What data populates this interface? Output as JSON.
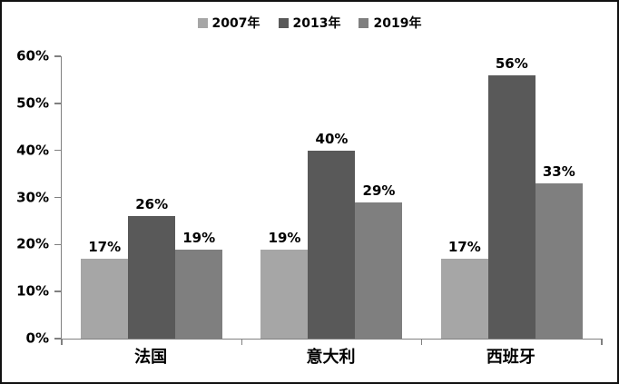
{
  "chart_data": {
    "type": "bar",
    "title": "",
    "categories": [
      "法国",
      "意大利",
      "西班牙"
    ],
    "series": [
      {
        "name": "2007年",
        "color": "#a6a6a6",
        "values": [
          17,
          19,
          17
        ],
        "labels": [
          "17%",
          "19%",
          "17%"
        ]
      },
      {
        "name": "2013年",
        "color": "#595959",
        "values": [
          26,
          40,
          56
        ],
        "labels": [
          "26%",
          "40%",
          "56%"
        ]
      },
      {
        "name": "2019年",
        "color": "#7f7f7f",
        "values": [
          19,
          29,
          33
        ],
        "labels": [
          "19%",
          "29%",
          "33%"
        ]
      }
    ],
    "value_suffix": "%",
    "ylim": [
      0,
      60
    ],
    "yticks": [
      0,
      10,
      20,
      30,
      40,
      50,
      60
    ],
    "ytick_labels": [
      "0%",
      "10%",
      "20%",
      "30%",
      "40%",
      "50%",
      "60%"
    ],
    "xlabel": "",
    "ylabel": "",
    "grid": false,
    "data_labels": true,
    "legend_position": "top-center",
    "colors": {
      "axis_line": "#808080",
      "outer_border": "#111111",
      "background": "#ffffff",
      "text": "#000000"
    }
  }
}
